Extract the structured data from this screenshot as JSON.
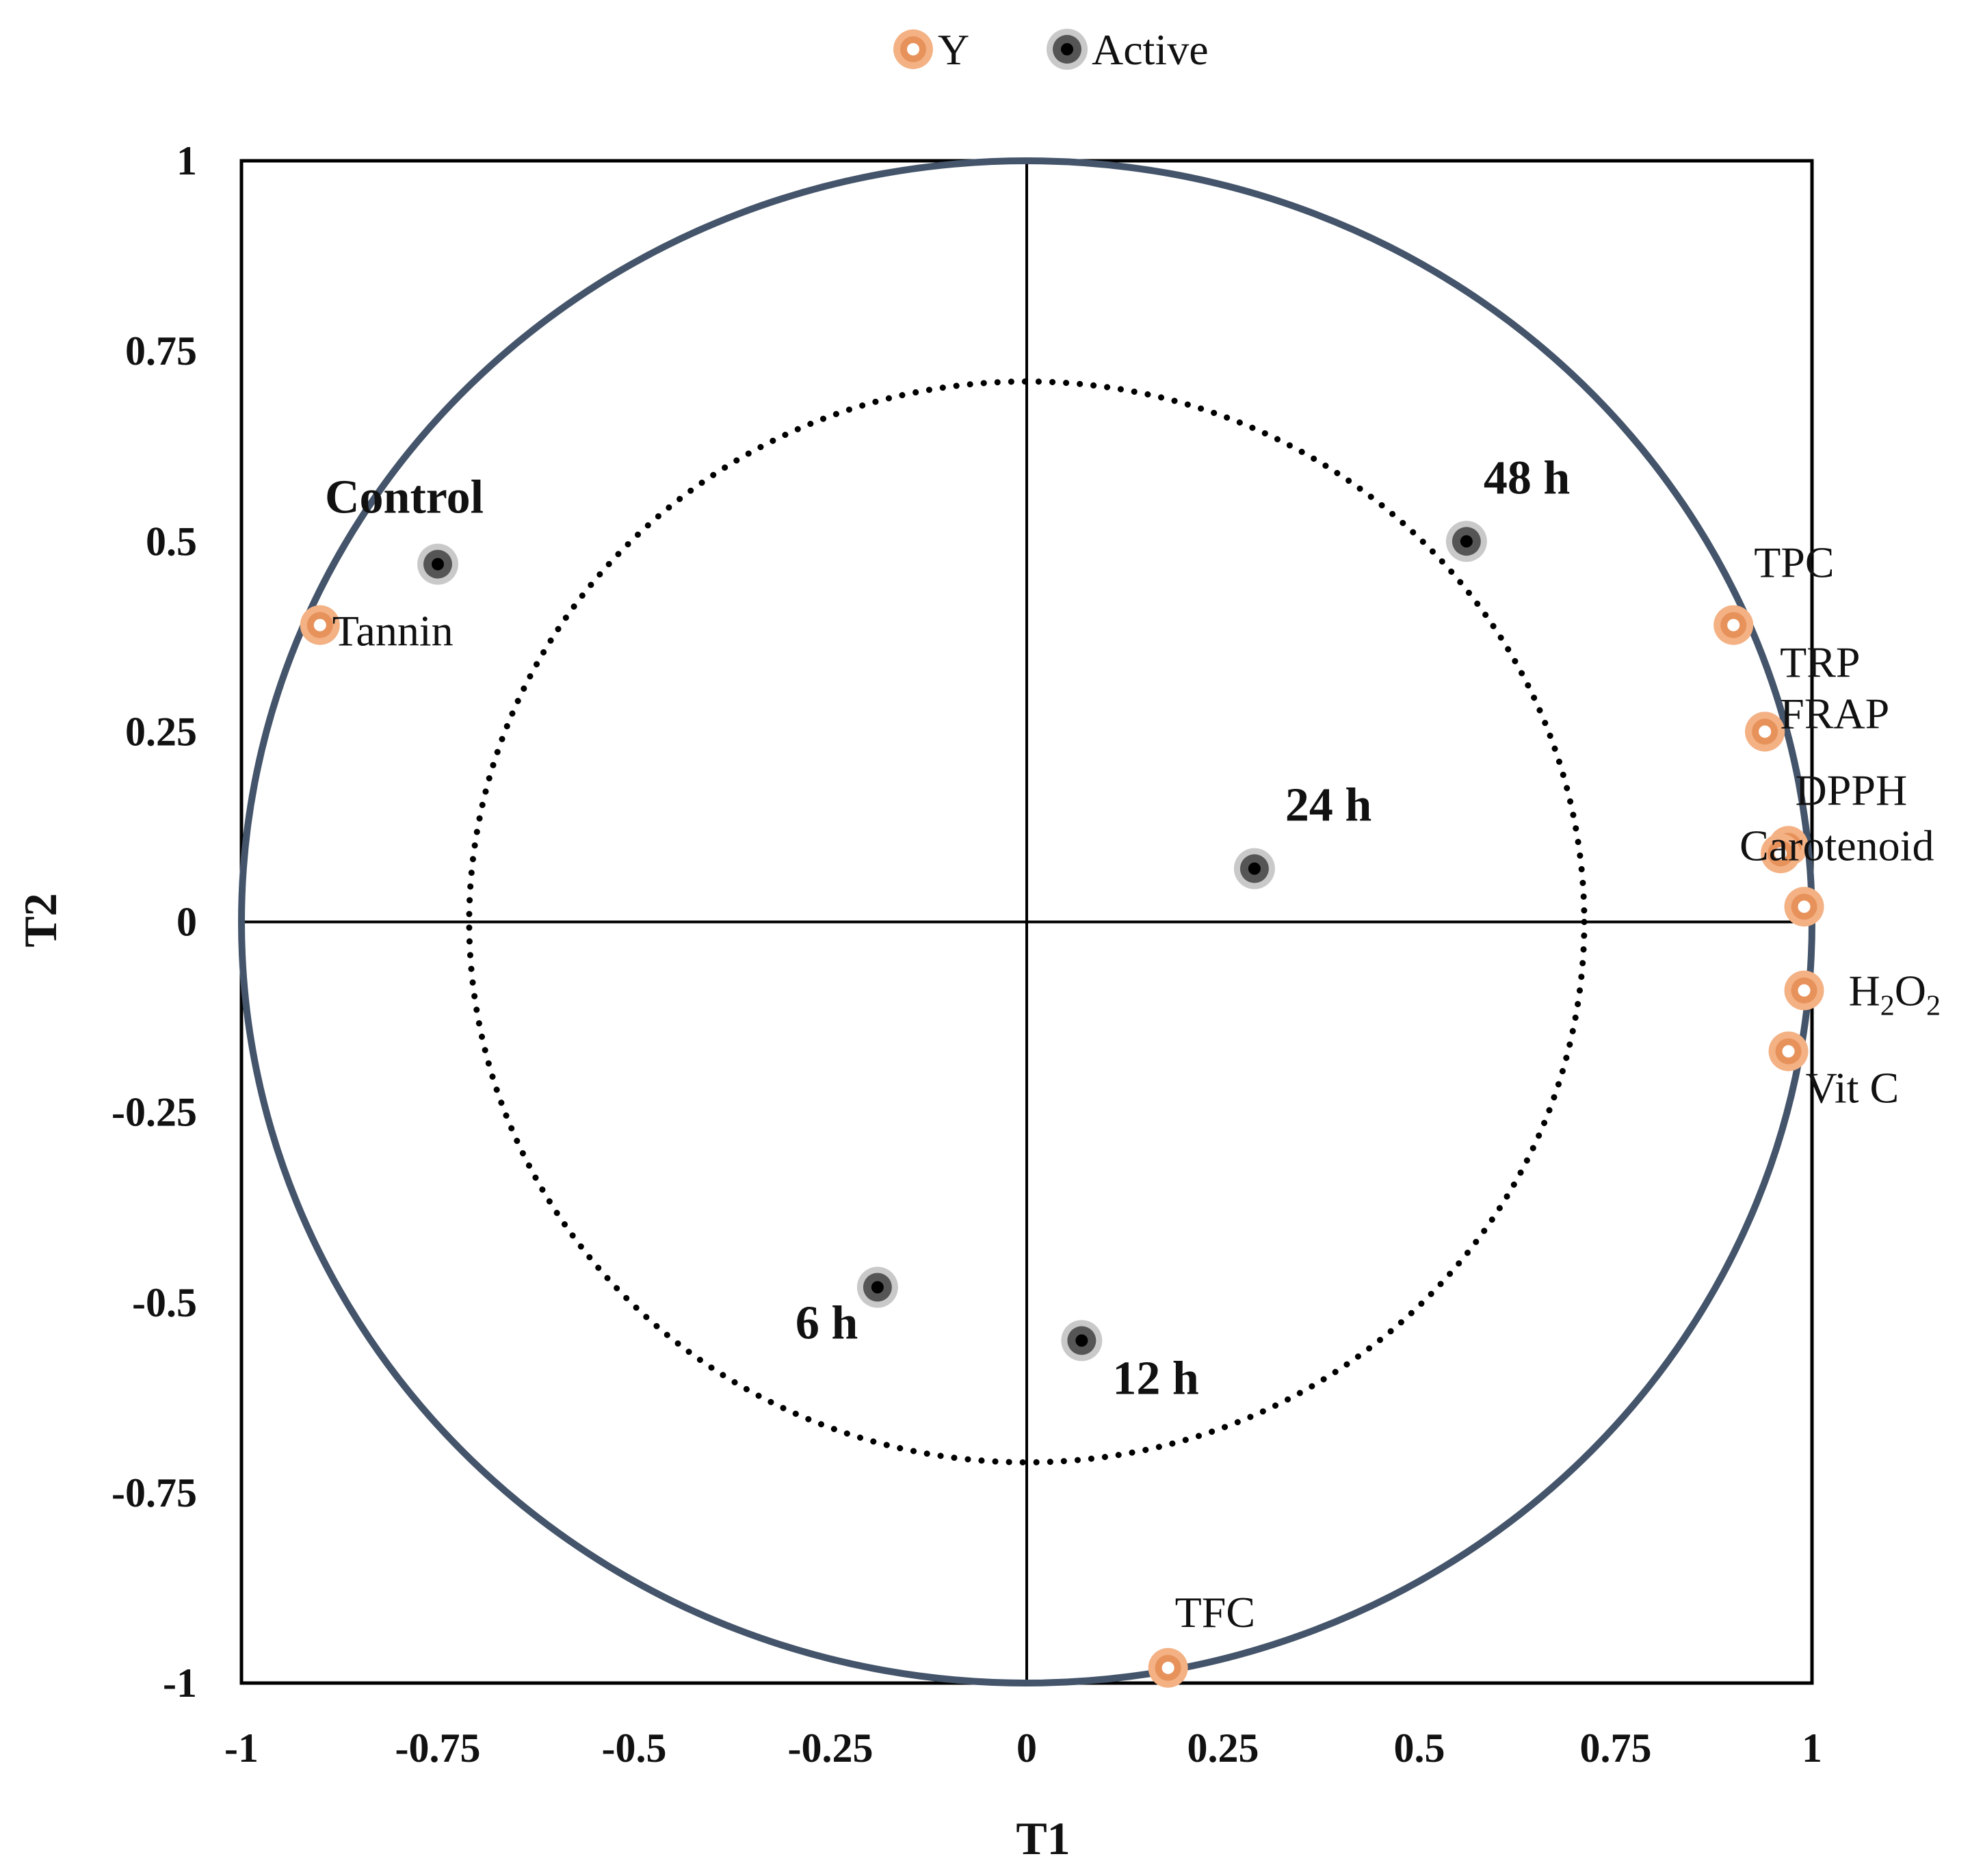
{
  "chart_data": {
    "type": "scatter",
    "title": "",
    "xlabel": "T1",
    "ylabel": "T2",
    "xlim": [
      -1,
      1
    ],
    "ylim": [
      -1,
      1
    ],
    "xticks": [
      "-1",
      "-0.75",
      "-0.5",
      "-0.25",
      "0",
      "0.25",
      "0.5",
      "0.75",
      "1"
    ],
    "yticks": [
      "1",
      "0.75",
      "0.5",
      "0.25",
      "0",
      "-0.25",
      "-0.5",
      "-0.75",
      "-1"
    ],
    "legend_position": "top",
    "circles": [
      {
        "radius": 1.0,
        "style": "solid"
      },
      {
        "radius": 0.71,
        "style": "dotted"
      }
    ],
    "colors": {
      "y": "#f3b184",
      "active": "#b0b0b0",
      "circle": "#44546a"
    },
    "series": [
      {
        "name": "Y",
        "points": [
          {
            "label": "Tannin",
            "x": -0.9,
            "y": 0.39
          },
          {
            "label": "TPC",
            "x": 0.9,
            "y": 0.39
          },
          {
            "label": "TRP",
            "x": 0.94,
            "y": 0.25
          },
          {
            "label": "FRAP",
            "x": 0.94,
            "y": 0.25
          },
          {
            "label": "DPPH",
            "x": 0.97,
            "y": 0.1
          },
          {
            "label": "Carotenoid",
            "x": 0.96,
            "y": 0.09
          },
          {
            "label": "",
            "x": 0.99,
            "y": 0.02
          },
          {
            "label": "H",
            "sub": "2",
            "label2": "O",
            "sub2": "2",
            "x": 0.99,
            "y": -0.09
          },
          {
            "label": "Vit C",
            "x": 0.97,
            "y": -0.17
          },
          {
            "label": "TFC",
            "x": 0.18,
            "y": -0.98
          }
        ]
      },
      {
        "name": "Active",
        "points": [
          {
            "label": "Control",
            "x": -0.75,
            "y": 0.47
          },
          {
            "label": "48 h",
            "x": 0.56,
            "y": 0.5
          },
          {
            "label": "24 h",
            "x": 0.29,
            "y": 0.07
          },
          {
            "label": "6 h",
            "x": -0.19,
            "y": -0.48
          },
          {
            "label": "12 h",
            "x": 0.07,
            "y": -0.55
          }
        ]
      }
    ]
  }
}
